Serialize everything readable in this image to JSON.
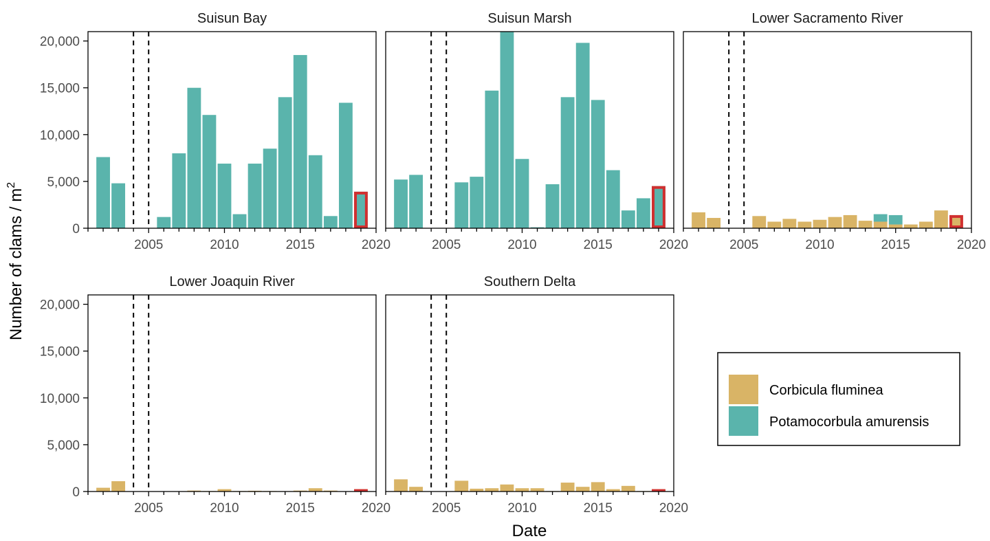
{
  "chart_data": {
    "type": "bar",
    "stacked": true,
    "xlabel": "Date",
    "ylabel": "Number of clams / m",
    "ylabel_superscript": "2",
    "xlim": [
      2001,
      2020
    ],
    "ylim": [
      0,
      21000
    ],
    "x_ticks": [
      2005,
      2010,
      2015,
      2020
    ],
    "y_ticks": [
      0,
      5000,
      10000,
      15000,
      20000
    ],
    "y_tick_labels": [
      "0",
      "5,000",
      "10,000",
      "15,000",
      "20,000"
    ],
    "reference_lines": [
      2004,
      2005
    ],
    "highlight_year": 2019,
    "colors": {
      "Corbicula fluminea": "#d9b466",
      "Potamocorbula amurensis": "#5ab4ac",
      "highlight": "#d03030"
    },
    "legend": {
      "position": "right",
      "entries": [
        "Corbicula fluminea",
        "Potamocorbula amurensis"
      ]
    },
    "facets": [
      {
        "title": "Suisun Bay",
        "years": [
          2002,
          2003,
          2006,
          2007,
          2008,
          2009,
          2010,
          2011,
          2012,
          2013,
          2014,
          2015,
          2016,
          2017,
          2018,
          2019
        ],
        "series": [
          {
            "name": "Corbicula fluminea",
            "values": [
              0,
              0,
              0,
              0,
              0,
              0,
              0,
              0,
              0,
              0,
              0,
              0,
              0,
              0,
              0,
              0
            ]
          },
          {
            "name": "Potamocorbula amurensis",
            "values": [
              7600,
              4800,
              1200,
              8000,
              15000,
              12100,
              6900,
              1500,
              6900,
              8500,
              14000,
              18500,
              7800,
              1300,
              13400,
              3900
            ]
          }
        ]
      },
      {
        "title": "Suisun Marsh",
        "years": [
          2002,
          2003,
          2006,
          2007,
          2008,
          2009,
          2010,
          2011,
          2012,
          2013,
          2014,
          2015,
          2016,
          2017,
          2018,
          2019
        ],
        "series": [
          {
            "name": "Corbicula fluminea",
            "values": [
              0,
              0,
              0,
              0,
              0,
              0,
              0,
              0,
              0,
              0,
              0,
              0,
              0,
              0,
              0,
              0
            ]
          },
          {
            "name": "Potamocorbula amurensis",
            "values": [
              5200,
              5700,
              4900,
              5500,
              14700,
              21000,
              7400,
              100,
              4700,
              14000,
              19800,
              13700,
              6200,
              1900,
              3200,
              4500
            ]
          }
        ]
      },
      {
        "title": "Lower Sacramento River",
        "years": [
          2002,
          2003,
          2006,
          2007,
          2008,
          2009,
          2010,
          2011,
          2012,
          2013,
          2014,
          2015,
          2016,
          2017,
          2018,
          2019
        ],
        "series": [
          {
            "name": "Corbicula fluminea",
            "values": [
              1700,
              1100,
              1300,
              700,
              1000,
              700,
              900,
              1200,
              1400,
              800,
              700,
              400,
              400,
              700,
              1900,
              1400
            ]
          },
          {
            "name": "Potamocorbula amurensis",
            "values": [
              0,
              0,
              0,
              0,
              0,
              0,
              0,
              0,
              0,
              0,
              800,
              1000,
              0,
              0,
              0,
              0
            ]
          }
        ]
      },
      {
        "title": "Lower Joaquin River",
        "years": [
          2002,
          2003,
          2006,
          2007,
          2008,
          2009,
          2010,
          2011,
          2012,
          2013,
          2014,
          2015,
          2016,
          2017,
          2018,
          2019
        ],
        "series": [
          {
            "name": "Corbicula fluminea",
            "values": [
              400,
              1100,
              20,
              30,
              100,
              50,
              250,
              50,
              80,
              50,
              40,
              100,
              350,
              100,
              30,
              250
            ]
          },
          {
            "name": "Potamocorbula amurensis",
            "values": [
              0,
              0,
              0,
              0,
              0,
              0,
              0,
              0,
              0,
              0,
              0,
              0,
              0,
              0,
              0,
              0
            ]
          }
        ]
      },
      {
        "title": "Southern Delta",
        "years": [
          2002,
          2003,
          2006,
          2007,
          2008,
          2009,
          2010,
          2011,
          2012,
          2013,
          2014,
          2015,
          2016,
          2017,
          2018,
          2019
        ],
        "series": [
          {
            "name": "Corbicula fluminea",
            "values": [
              1300,
              500,
              1150,
              300,
              350,
              750,
              350,
              350,
              50,
              950,
              500,
              1000,
              250,
              600,
              50,
              250
            ]
          },
          {
            "name": "Potamocorbula amurensis",
            "values": [
              0,
              0,
              0,
              0,
              0,
              0,
              0,
              0,
              0,
              0,
              0,
              0,
              0,
              0,
              0,
              0
            ]
          }
        ]
      }
    ]
  }
}
